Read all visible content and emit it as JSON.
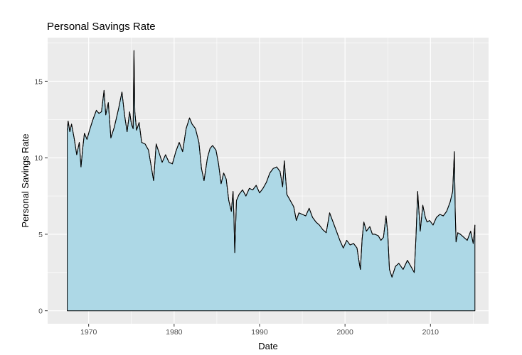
{
  "chart_data": {
    "type": "area",
    "title": "Personal Savings Rate",
    "xlabel": "Date",
    "ylabel": "Personal Savings Rate",
    "xlim": [
      1965.2,
      2016.8
    ],
    "ylim": [
      -0.85,
      17.85
    ],
    "x_ticks": [
      1970,
      1980,
      1990,
      2000,
      2010
    ],
    "y_ticks": [
      0,
      5,
      10,
      15
    ],
    "grid": true,
    "legend": "none",
    "colors": {
      "fill": "#add8e6",
      "line": "#000000",
      "panel": "#ebebeb",
      "grid": "#ffffff"
    },
    "series": [
      {
        "x": [
          1967.5,
          1967.6,
          1967.8,
          1968.0,
          1968.3,
          1968.6,
          1968.9,
          1969.1,
          1969.3,
          1969.5,
          1969.8,
          1970.1,
          1970.5,
          1970.9,
          1971.2,
          1971.5,
          1971.8,
          1972.0,
          1972.3,
          1972.6,
          1973.0,
          1973.5,
          1973.9,
          1974.2,
          1974.5,
          1974.8,
          1975.0,
          1975.2,
          1975.3,
          1975.4,
          1975.6,
          1975.9,
          1976.2,
          1976.6,
          1977.0,
          1977.3,
          1977.6,
          1977.9,
          1978.2,
          1978.6,
          1979.0,
          1979.4,
          1979.8,
          1980.2,
          1980.6,
          1981.0,
          1981.4,
          1981.8,
          1982.1,
          1982.5,
          1982.9,
          1983.2,
          1983.5,
          1983.9,
          1984.2,
          1984.5,
          1984.9,
          1985.2,
          1985.5,
          1985.8,
          1986.1,
          1986.4,
          1986.7,
          1986.9,
          1987.0,
          1987.1,
          1987.3,
          1987.6,
          1988.0,
          1988.4,
          1988.8,
          1989.2,
          1989.6,
          1990.0,
          1990.4,
          1990.8,
          1991.2,
          1991.6,
          1992.0,
          1992.4,
          1992.7,
          1992.9,
          1993.2,
          1993.6,
          1994.0,
          1994.3,
          1994.6,
          1995.0,
          1995.4,
          1995.8,
          1996.2,
          1996.6,
          1997.0,
          1997.4,
          1997.8,
          1998.2,
          1998.6,
          1999.0,
          1999.4,
          1999.8,
          2000.2,
          2000.6,
          2001.0,
          2001.4,
          2001.7,
          2001.8,
          2002.0,
          2002.2,
          2002.5,
          2002.9,
          2003.2,
          2003.5,
          2003.9,
          2004.2,
          2004.5,
          2004.8,
          2005.0,
          2005.2,
          2005.5,
          2005.9,
          2006.3,
          2006.8,
          2007.3,
          2007.8,
          2008.1,
          2008.3,
          2008.5,
          2008.8,
          2009.1,
          2009.4,
          2009.6,
          2009.9,
          2010.3,
          2010.7,
          2011.1,
          2011.5,
          2011.9,
          2012.3,
          2012.6,
          2012.8,
          2012.9,
          2013.0,
          2013.2,
          2013.5,
          2013.9,
          2014.3,
          2014.7,
          2015.0,
          2015.2
        ],
        "values": [
          11.8,
          12.4,
          11.7,
          12.2,
          11.3,
          10.2,
          11.0,
          9.4,
          10.6,
          11.6,
          11.2,
          11.8,
          12.5,
          13.1,
          12.9,
          13.0,
          14.4,
          12.8,
          13.6,
          11.3,
          12.0,
          13.2,
          14.3,
          12.8,
          11.7,
          13.0,
          12.2,
          11.9,
          17.0,
          13.0,
          11.8,
          12.3,
          11.0,
          10.9,
          10.5,
          9.5,
          8.5,
          10.9,
          10.4,
          9.7,
          10.2,
          9.7,
          9.6,
          10.4,
          11.0,
          10.4,
          11.9,
          12.6,
          12.2,
          11.9,
          11.0,
          9.3,
          8.5,
          10.0,
          10.6,
          10.8,
          10.5,
          9.6,
          8.3,
          9.0,
          8.6,
          7.2,
          6.5,
          7.8,
          6.2,
          3.8,
          7.2,
          7.6,
          7.9,
          7.5,
          8.0,
          7.9,
          8.2,
          7.7,
          8.0,
          8.4,
          9.0,
          9.3,
          9.4,
          9.1,
          8.1,
          9.8,
          7.6,
          7.2,
          6.8,
          5.9,
          6.4,
          6.3,
          6.2,
          6.7,
          6.1,
          5.8,
          5.6,
          5.3,
          5.1,
          6.4,
          5.8,
          5.2,
          4.6,
          4.1,
          4.6,
          4.3,
          4.4,
          4.1,
          3.0,
          2.7,
          4.7,
          5.8,
          5.2,
          5.5,
          5.0,
          5.0,
          4.9,
          4.6,
          4.8,
          6.2,
          5.1,
          2.7,
          2.2,
          2.9,
          3.1,
          2.7,
          3.3,
          2.8,
          2.5,
          4.8,
          7.8,
          5.2,
          6.9,
          6.1,
          5.8,
          5.9,
          5.6,
          6.1,
          6.3,
          6.2,
          6.5,
          7.1,
          7.8,
          10.4,
          6.5,
          4.5,
          5.1,
          5.0,
          4.8,
          4.6,
          5.2,
          4.4,
          5.6
        ]
      }
    ]
  }
}
